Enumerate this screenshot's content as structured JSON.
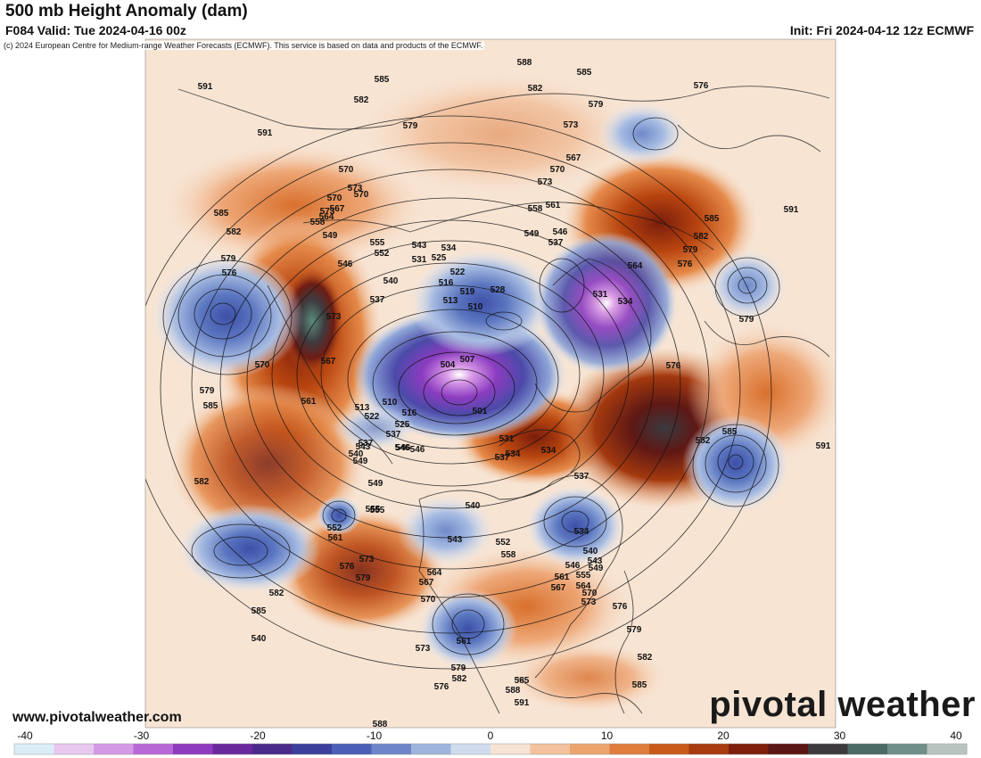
{
  "header": {
    "title": "500 mb Height Anomaly (dam)",
    "valid": "F084 Valid: Tue 2024-04-16 00z",
    "init": "Init: Fri 2024-04-12 12z ECMWF",
    "copyright": "(c) 2024 European Centre for Medium-range Weather Forecasts (ECMWF). This service is based on data and products of the ECMWF."
  },
  "footer": {
    "site": "www.pivotalweather.com",
    "brand": "pivotal weather"
  },
  "colorbar": {
    "ticks": [
      "-40",
      "-30",
      "-20",
      "-10",
      "0",
      "10",
      "20",
      "30",
      "40"
    ],
    "min": -40,
    "max": 40,
    "colors_negative": [
      "#dbeef8",
      "#e7c8ef",
      "#d49ae6",
      "#b968d8",
      "#8f3bbf",
      "#6a2a9e",
      "#4a2a8a",
      "#3c3f9c",
      "#4a5fb8",
      "#6c86c9",
      "#9fb4dc",
      "#cfdcee"
    ],
    "colors_positive": [
      "#f7e3d3",
      "#f3c29c",
      "#eda46f",
      "#e07d3d",
      "#c95a1a",
      "#a83b0f",
      "#7e1f0c",
      "#5a1614",
      "#3c3a3c",
      "#4c6a64",
      "#6f8f88",
      "#b9c4c0"
    ]
  },
  "contour_labels": [
    "591",
    "585",
    "582",
    "579",
    "576",
    "573",
    "570",
    "567",
    "564",
    "561",
    "558",
    "555",
    "552",
    "549",
    "546",
    "543",
    "540",
    "537",
    "534",
    "531",
    "528",
    "525",
    "522",
    "519",
    "516",
    "513",
    "510",
    "507",
    "504",
    "501"
  ],
  "map_labels": [
    {
      "t": "588"
    },
    {
      "t": "585"
    },
    {
      "t": "582"
    },
    {
      "t": "579"
    },
    {
      "t": "576"
    },
    {
      "t": "591"
    },
    {
      "t": "591"
    },
    {
      "t": "585"
    },
    {
      "t": "582"
    },
    {
      "t": "579"
    },
    {
      "t": "573"
    },
    {
      "t": "570"
    },
    {
      "t": "573"
    },
    {
      "t": "567"
    },
    {
      "t": "561"
    },
    {
      "t": "558"
    },
    {
      "t": "549"
    },
    {
      "t": "546"
    },
    {
      "t": "537"
    },
    {
      "t": "564"
    },
    {
      "t": "585"
    },
    {
      "t": "582"
    },
    {
      "t": "579"
    },
    {
      "t": "576"
    },
    {
      "t": "570"
    },
    {
      "t": "573"
    },
    {
      "t": "591"
    },
    {
      "t": "585"
    },
    {
      "t": "582"
    },
    {
      "t": "579"
    },
    {
      "t": "576"
    },
    {
      "t": "567"
    },
    {
      "t": "570"
    },
    {
      "t": "573"
    },
    {
      "t": "570"
    },
    {
      "t": "573"
    },
    {
      "t": "564"
    },
    {
      "t": "567"
    },
    {
      "t": "570"
    },
    {
      "t": "561"
    },
    {
      "t": "558"
    },
    {
      "t": "549"
    },
    {
      "t": "555"
    },
    {
      "t": "552"
    },
    {
      "t": "546"
    },
    {
      "t": "543"
    },
    {
      "t": "531"
    },
    {
      "t": "534"
    },
    {
      "t": "525"
    },
    {
      "t": "522"
    },
    {
      "t": "516"
    },
    {
      "t": "519"
    },
    {
      "t": "513"
    },
    {
      "t": "528"
    },
    {
      "t": "510"
    },
    {
      "t": "540"
    },
    {
      "t": "537"
    },
    {
      "t": "531"
    },
    {
      "t": "534"
    },
    {
      "t": "504"
    },
    {
      "t": "507"
    },
    {
      "t": "510"
    },
    {
      "t": "513"
    },
    {
      "t": "516"
    },
    {
      "t": "522"
    },
    {
      "t": "525"
    },
    {
      "t": "537"
    },
    {
      "t": "501"
    },
    {
      "t": "531"
    },
    {
      "t": "534"
    },
    {
      "t": "537"
    },
    {
      "t": "534"
    },
    {
      "t": "537"
    },
    {
      "t": "546"
    },
    {
      "t": "549"
    },
    {
      "t": "543"
    },
    {
      "t": "540"
    },
    {
      "t": "555"
    },
    {
      "t": "552"
    },
    {
      "t": "561"
    },
    {
      "t": "573"
    },
    {
      "t": "576"
    },
    {
      "t": "579"
    },
    {
      "t": "582"
    },
    {
      "t": "585"
    },
    {
      "t": "540"
    },
    {
      "t": "543"
    },
    {
      "t": "534"
    },
    {
      "t": "540"
    },
    {
      "t": "543"
    },
    {
      "t": "546"
    },
    {
      "t": "549"
    },
    {
      "t": "552"
    },
    {
      "t": "558"
    },
    {
      "t": "555"
    },
    {
      "t": "561"
    },
    {
      "t": "564"
    },
    {
      "t": "567"
    },
    {
      "t": "570"
    },
    {
      "t": "573"
    },
    {
      "t": "576"
    },
    {
      "t": "579"
    },
    {
      "t": "582"
    },
    {
      "t": "585"
    },
    {
      "t": "561"
    },
    {
      "t": "564"
    },
    {
      "t": "567"
    },
    {
      "t": "570"
    },
    {
      "t": "573"
    },
    {
      "t": "576"
    },
    {
      "t": "579"
    },
    {
      "t": "582"
    },
    {
      "t": "585"
    },
    {
      "t": "588"
    },
    {
      "t": "591"
    },
    {
      "t": "588"
    },
    {
      "t": "582"
    },
    {
      "t": "585"
    },
    {
      "t": "576"
    },
    {
      "t": "579"
    },
    {
      "t": "579"
    },
    {
      "t": "582"
    },
    {
      "t": "585"
    },
    {
      "t": "591"
    },
    {
      "t": "546"
    },
    {
      "t": "540"
    },
    {
      "t": "537"
    },
    {
      "t": "549"
    },
    {
      "t": "546"
    },
    {
      "t": "555"
    }
  ]
}
